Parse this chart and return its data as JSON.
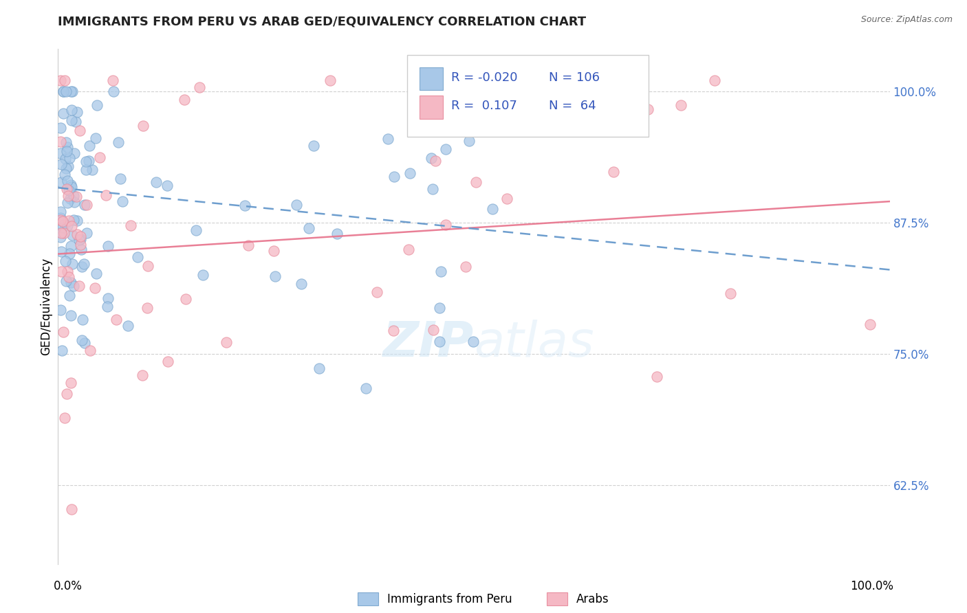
{
  "title": "IMMIGRANTS FROM PERU VS ARAB GED/EQUIVALENCY CORRELATION CHART",
  "source_text": "Source: ZipAtlas.com",
  "ylabel": "GED/Equivalency",
  "xlim": [
    0.0,
    100.0
  ],
  "ylim": [
    55.0,
    104.0
  ],
  "yticks": [
    62.5,
    75.0,
    87.5,
    100.0
  ],
  "ytick_labels": [
    "62.5%",
    "75.0%",
    "87.5%",
    "100.0%"
  ],
  "color_peru": "#a8c8e8",
  "color_arab": "#f5b8c4",
  "color_peru_edge": "#80aad0",
  "color_arab_edge": "#e890a0",
  "color_peru_line": "#6699cc",
  "color_arab_line": "#e87890",
  "watermark_zip": "ZIP",
  "watermark_atlas": "atlas",
  "peru_trend_x0": 0.0,
  "peru_trend_y0": 90.8,
  "peru_trend_x1": 100.0,
  "peru_trend_y1": 83.0,
  "arab_trend_x0": 0.0,
  "arab_trend_y0": 84.5,
  "arab_trend_x1": 100.0,
  "arab_trend_y1": 89.5,
  "background_color": "#ffffff",
  "grid_color": "#d0d0d0",
  "legend_r1_text": "R = -0.020",
  "legend_n1_text": "N = 106",
  "legend_r2_text": "R =   0.107",
  "legend_n2_text": "N =   64"
}
